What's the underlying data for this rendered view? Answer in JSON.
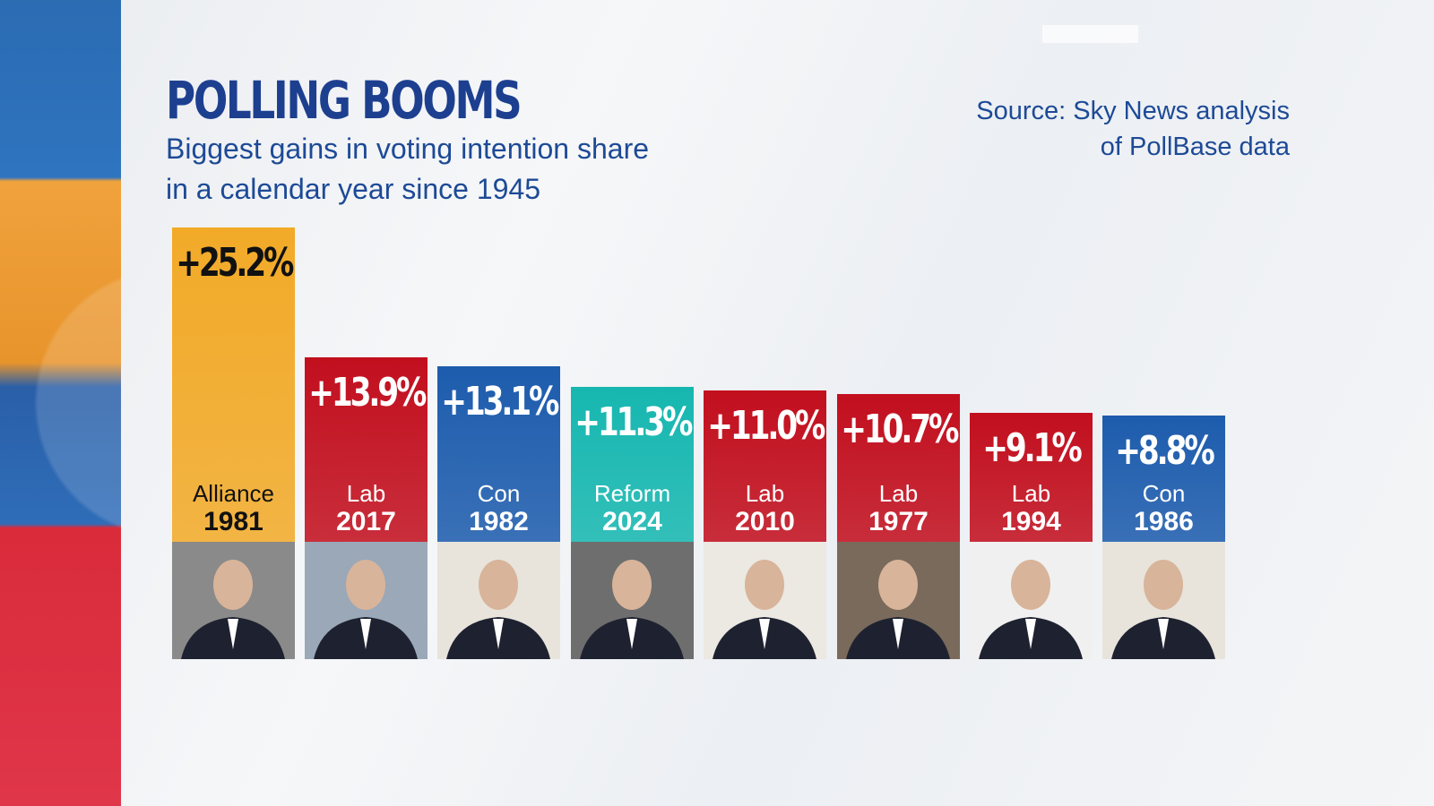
{
  "chart_data": {
    "type": "bar",
    "title": "POLLING BOOMS",
    "subtitle": "Biggest gains in voting intention share in a calendar year since 1945",
    "source": [
      "Source: Sky News analysis",
      "of PollBase data"
    ],
    "unit": "%",
    "bars": [
      {
        "label": "+25.2%",
        "value": 25.2,
        "party": "Alliance",
        "year": "1981",
        "color": "#f2aa28",
        "text_color": "#111111",
        "photo_bg": "#8a8a8a"
      },
      {
        "label": "+13.9%",
        "value": 13.9,
        "party": "Lab",
        "year": "2017",
        "color": "#c20f1e",
        "text_color": "#ffffff",
        "photo_bg": "#9aa8b8"
      },
      {
        "label": "+13.1%",
        "value": 13.1,
        "party": "Con",
        "year": "1982",
        "color": "#1d5cad",
        "text_color": "#ffffff",
        "photo_bg": "#e8e4dc"
      },
      {
        "label": "+11.3%",
        "value": 11.3,
        "party": "Reform",
        "year": "2024",
        "color": "#16b7b0",
        "text_color": "#ffffff",
        "photo_bg": "#6e6e6e"
      },
      {
        "label": "+11.0%",
        "value": 11.0,
        "party": "Lab",
        "year": "2010",
        "color": "#c20f1e",
        "text_color": "#ffffff",
        "photo_bg": "#ece8e2"
      },
      {
        "label": "+10.7%",
        "value": 10.7,
        "party": "Lab",
        "year": "1977",
        "color": "#c20f1e",
        "text_color": "#ffffff",
        "photo_bg": "#7a6a5c"
      },
      {
        "label": "+9.1%",
        "value": 9.1,
        "party": "Lab",
        "year": "1994",
        "color": "#c20f1e",
        "text_color": "#ffffff",
        "photo_bg": "#f0f0f0"
      },
      {
        "label": "+8.8%",
        "value": 8.8,
        "party": "Con",
        "year": "1986",
        "color": "#1d5cad",
        "text_color": "#ffffff",
        "photo_bg": "#e8e4dc"
      }
    ]
  }
}
